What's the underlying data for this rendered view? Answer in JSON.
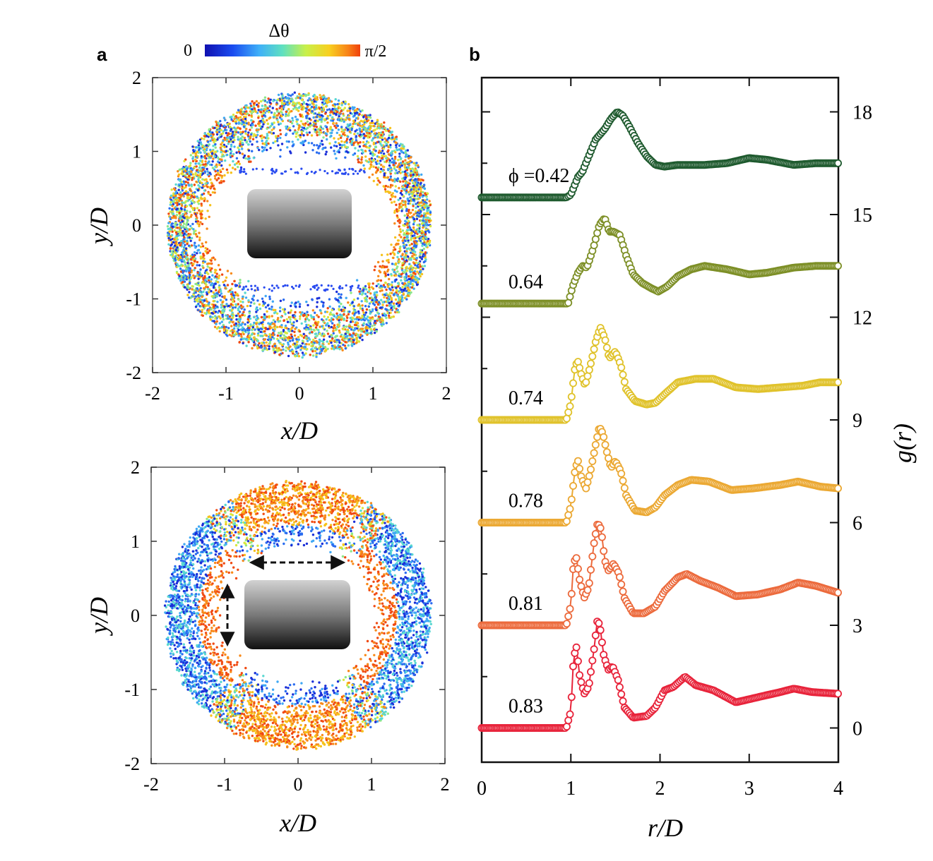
{
  "panel_labels": {
    "a": "a",
    "b": "b"
  },
  "colorbar": {
    "title": "Δθ",
    "min_label": "0",
    "max_label": "π/2"
  },
  "chart_data": [
    {
      "type": "scatter",
      "panel": "a-top",
      "xlabel": "x/D",
      "ylabel": "y/D",
      "xlim": [
        -2,
        2
      ],
      "ylim": [
        -2,
        2
      ],
      "xticks": [
        "-2",
        "-1",
        "0",
        "1",
        "2"
      ],
      "yticks": [
        "-2",
        "-1",
        "0",
        "1",
        "2"
      ],
      "description_values": {
        "outer_radius": 1.78,
        "inner_rx": 1.25,
        "inner_ry": 0.95
      }
    },
    {
      "type": "scatter",
      "panel": "a-bottom",
      "xlabel": "x/D",
      "ylabel": "y/D",
      "xlim": [
        -2,
        2
      ],
      "ylim": [
        -2,
        2
      ],
      "xticks": [
        "-2",
        "-1",
        "0",
        "1",
        "2"
      ],
      "yticks": [
        "-2",
        "-1",
        "0",
        "1",
        "2"
      ],
      "description_values": {
        "outer_radius": 1.8,
        "inner_rx": 1.0,
        "inner_ry": 0.9
      }
    },
    {
      "type": "line",
      "panel": "b",
      "xlabel": "r/D",
      "ylabel": "g(r)",
      "xlim": [
        0,
        4
      ],
      "ylim": [
        -1,
        19
      ],
      "xticks": [
        "0",
        "1",
        "2",
        "3",
        "4"
      ],
      "yticks": [
        "0",
        "3",
        "6",
        "9",
        "12",
        "15",
        "18"
      ],
      "series": [
        {
          "name": "ϕ =0.42",
          "color": "#1e5a2e",
          "offset": 15.5,
          "points": [
            [
              0,
              0
            ],
            [
              0.95,
              0
            ],
            [
              1.0,
              0.08
            ],
            [
              1.08,
              0.6
            ],
            [
              1.13,
              0.75
            ],
            [
              1.2,
              1.2
            ],
            [
              1.28,
              1.7
            ],
            [
              1.38,
              2.0
            ],
            [
              1.45,
              2.3
            ],
            [
              1.52,
              2.5
            ],
            [
              1.58,
              2.4
            ],
            [
              1.65,
              2.1
            ],
            [
              1.75,
              1.6
            ],
            [
              1.85,
              1.2
            ],
            [
              1.95,
              0.95
            ],
            [
              2.05,
              0.9
            ],
            [
              2.2,
              0.95
            ],
            [
              2.5,
              0.95
            ],
            [
              2.75,
              1.0
            ],
            [
              3.0,
              1.15
            ],
            [
              3.2,
              1.1
            ],
            [
              3.5,
              0.95
            ],
            [
              3.75,
              1.0
            ],
            [
              4.0,
              1.0
            ]
          ]
        },
        {
          "name": "0.64",
          "color": "#7d8f26",
          "offset": 12.4,
          "points": [
            [
              0,
              0
            ],
            [
              0.97,
              0
            ],
            [
              1.02,
              0.5
            ],
            [
              1.08,
              0.9
            ],
            [
              1.13,
              1.1
            ],
            [
              1.18,
              1.05
            ],
            [
              1.25,
              1.6
            ],
            [
              1.32,
              2.3
            ],
            [
              1.38,
              2.5
            ],
            [
              1.43,
              2.1
            ],
            [
              1.48,
              2.1
            ],
            [
              1.55,
              2.0
            ],
            [
              1.62,
              1.4
            ],
            [
              1.7,
              0.85
            ],
            [
              1.8,
              0.6
            ],
            [
              1.9,
              0.45
            ],
            [
              1.98,
              0.35
            ],
            [
              2.08,
              0.5
            ],
            [
              2.2,
              0.8
            ],
            [
              2.35,
              1.0
            ],
            [
              2.5,
              1.1
            ],
            [
              2.75,
              1.0
            ],
            [
              3.0,
              0.85
            ],
            [
              3.2,
              0.9
            ],
            [
              3.5,
              1.05
            ],
            [
              3.75,
              1.1
            ],
            [
              4.0,
              1.1
            ]
          ]
        },
        {
          "name": "0.74",
          "color": "#e0c22a",
          "offset": 9.0,
          "points": [
            [
              0,
              0
            ],
            [
              0.95,
              0
            ],
            [
              1.0,
              0.5
            ],
            [
              1.05,
              1.6
            ],
            [
              1.08,
              1.7
            ],
            [
              1.12,
              1.3
            ],
            [
              1.16,
              1.0
            ],
            [
              1.22,
              1.6
            ],
            [
              1.28,
              2.3
            ],
            [
              1.33,
              2.7
            ],
            [
              1.38,
              2.4
            ],
            [
              1.43,
              1.8
            ],
            [
              1.5,
              2.0
            ],
            [
              1.56,
              1.6
            ],
            [
              1.62,
              0.9
            ],
            [
              1.72,
              0.55
            ],
            [
              1.85,
              0.45
            ],
            [
              1.95,
              0.5
            ],
            [
              2.05,
              0.75
            ],
            [
              2.2,
              1.1
            ],
            [
              2.4,
              1.2
            ],
            [
              2.6,
              1.2
            ],
            [
              2.85,
              0.95
            ],
            [
              3.1,
              0.9
            ],
            [
              3.35,
              0.95
            ],
            [
              3.6,
              1.0
            ],
            [
              3.8,
              1.1
            ],
            [
              4.0,
              1.1
            ]
          ]
        },
        {
          "name": "0.78",
          "color": "#eba832",
          "offset": 6.0,
          "points": [
            [
              0,
              0
            ],
            [
              0.95,
              0
            ],
            [
              1.0,
              0.5
            ],
            [
              1.05,
              1.6
            ],
            [
              1.08,
              1.8
            ],
            [
              1.12,
              1.3
            ],
            [
              1.17,
              1.0
            ],
            [
              1.22,
              1.5
            ],
            [
              1.28,
              2.3
            ],
            [
              1.32,
              2.8
            ],
            [
              1.36,
              2.6
            ],
            [
              1.4,
              2.1
            ],
            [
              1.45,
              1.6
            ],
            [
              1.5,
              1.8
            ],
            [
              1.56,
              1.5
            ],
            [
              1.62,
              0.8
            ],
            [
              1.72,
              0.35
            ],
            [
              1.85,
              0.3
            ],
            [
              1.95,
              0.45
            ],
            [
              2.05,
              0.8
            ],
            [
              2.2,
              1.1
            ],
            [
              2.35,
              1.25
            ],
            [
              2.55,
              1.2
            ],
            [
              2.8,
              0.95
            ],
            [
              3.05,
              1.0
            ],
            [
              3.35,
              1.1
            ],
            [
              3.55,
              1.2
            ],
            [
              3.8,
              1.05
            ],
            [
              4.0,
              1.0
            ]
          ]
        },
        {
          "name": "0.81",
          "color": "#ec6a3c",
          "offset": 3.0,
          "points": [
            [
              0,
              0
            ],
            [
              0.95,
              0
            ],
            [
              1.0,
              0.6
            ],
            [
              1.03,
              1.8
            ],
            [
              1.06,
              2.0
            ],
            [
              1.1,
              1.3
            ],
            [
              1.15,
              0.8
            ],
            [
              1.2,
              1.1
            ],
            [
              1.26,
              2.4
            ],
            [
              1.3,
              3.0
            ],
            [
              1.34,
              2.8
            ],
            [
              1.38,
              1.9
            ],
            [
              1.42,
              1.6
            ],
            [
              1.48,
              1.8
            ],
            [
              1.54,
              1.5
            ],
            [
              1.6,
              0.8
            ],
            [
              1.7,
              0.35
            ],
            [
              1.82,
              0.35
            ],
            [
              1.95,
              0.55
            ],
            [
              2.05,
              1.0
            ],
            [
              2.2,
              1.4
            ],
            [
              2.3,
              1.5
            ],
            [
              2.45,
              1.3
            ],
            [
              2.65,
              1.1
            ],
            [
              2.85,
              0.85
            ],
            [
              3.1,
              0.9
            ],
            [
              3.35,
              1.05
            ],
            [
              3.55,
              1.25
            ],
            [
              3.75,
              1.15
            ],
            [
              4.0,
              0.95
            ]
          ]
        },
        {
          "name": "0.83",
          "color": "#e8233a",
          "offset": 0.0,
          "points": [
            [
              0,
              0
            ],
            [
              0.95,
              0
            ],
            [
              1.0,
              0.5
            ],
            [
              1.03,
              2.0
            ],
            [
              1.06,
              2.4
            ],
            [
              1.1,
              1.5
            ],
            [
              1.15,
              1.0
            ],
            [
              1.2,
              1.2
            ],
            [
              1.26,
              2.3
            ],
            [
              1.3,
              3.2
            ],
            [
              1.33,
              2.9
            ],
            [
              1.37,
              2.1
            ],
            [
              1.42,
              1.7
            ],
            [
              1.47,
              1.8
            ],
            [
              1.53,
              1.4
            ],
            [
              1.6,
              0.6
            ],
            [
              1.7,
              0.3
            ],
            [
              1.85,
              0.35
            ],
            [
              1.95,
              0.6
            ],
            [
              2.05,
              1.1
            ],
            [
              2.15,
              1.2
            ],
            [
              2.28,
              1.5
            ],
            [
              2.4,
              1.25
            ],
            [
              2.6,
              1.1
            ],
            [
              2.85,
              0.75
            ],
            [
              3.1,
              0.9
            ],
            [
              3.35,
              1.05
            ],
            [
              3.5,
              1.15
            ],
            [
              3.7,
              1.05
            ],
            [
              4.0,
              1.0
            ]
          ]
        }
      ]
    }
  ]
}
